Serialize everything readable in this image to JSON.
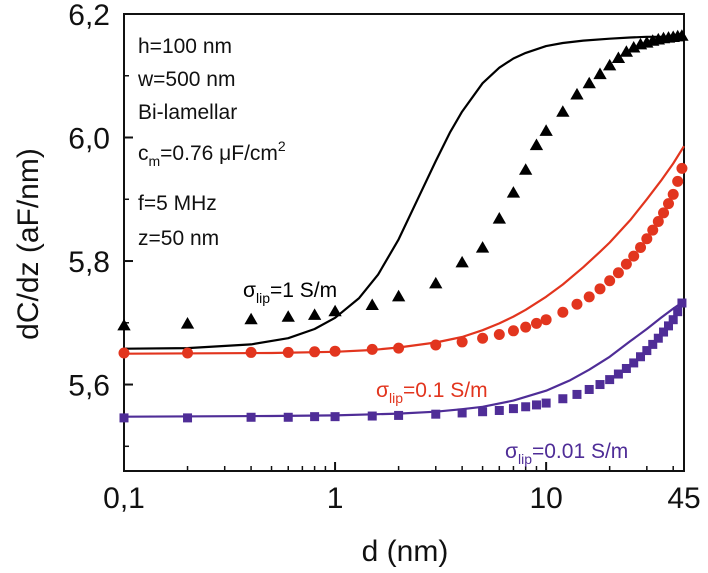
{
  "chart_data": {
    "type": "line",
    "xscale": "log",
    "xlim": [
      0.1,
      45
    ],
    "ylim": [
      5.46,
      6.2
    ],
    "xlabel": "d (nm)",
    "ylabel": "dC/dz (aF/nm)",
    "x_ticks": [
      {
        "value": 0.1,
        "label": "0,1"
      },
      {
        "value": 1,
        "label": "1"
      },
      {
        "value": 10,
        "label": "10"
      },
      {
        "value": 45,
        "label": "45"
      }
    ],
    "y_ticks": [
      {
        "value": 5.6,
        "label": "5,6"
      },
      {
        "value": 5.8,
        "label": "5,8"
      },
      {
        "value": 6.0,
        "label": "6,0"
      },
      {
        "value": 6.2,
        "label": "6,2"
      }
    ],
    "parameters": {
      "h": "h=100 nm",
      "w": "w=500 nm",
      "type": "Bi-lamellar",
      "cm_prefix": "c",
      "cm_sub": "m",
      "cm_value": "=0.76 μF/cm",
      "cm_sup": "2",
      "f": "f=5 MHz",
      "z": "z=50 nm"
    },
    "series": [
      {
        "name": "σlip=1 S/m",
        "label_prefix": "σ",
        "label_sub": "lip",
        "label_value": "=1 S/m",
        "color": "#000000",
        "marker": "triangle",
        "model_x": [
          0.1,
          0.2,
          0.4,
          0.6,
          0.8,
          1.0,
          1.3,
          1.6,
          2.0,
          2.5,
          3.0,
          3.5,
          4.0,
          5.0,
          6.0,
          7.0,
          8.0,
          10.0,
          12.0,
          15.0,
          20.0,
          25.0,
          30.0,
          35.0,
          45.0
        ],
        "model_y": [
          5.658,
          5.659,
          5.665,
          5.675,
          5.69,
          5.708,
          5.74,
          5.778,
          5.835,
          5.905,
          5.962,
          6.008,
          6.042,
          6.088,
          6.113,
          6.128,
          6.137,
          6.148,
          6.153,
          6.157,
          6.16,
          6.162,
          6.163,
          6.163,
          6.164
        ],
        "points_x": [
          0.1,
          0.2,
          0.4,
          0.6,
          0.8,
          1.0,
          1.5,
          2.0,
          3.0,
          4.0,
          5.0,
          6.0,
          7.0,
          8.0,
          9.0,
          10.0,
          12.0,
          14.0,
          16.0,
          18.0,
          20.0,
          22.0,
          24.0,
          26.0,
          28.0,
          30.0,
          32.0,
          34.0,
          36.0,
          38.0,
          40.0,
          42.0,
          44.0
        ],
        "points_y": [
          5.695,
          5.698,
          5.705,
          5.709,
          5.712,
          5.718,
          5.728,
          5.742,
          5.763,
          5.797,
          5.821,
          5.868,
          5.91,
          5.947,
          5.987,
          6.01,
          6.041,
          6.069,
          6.087,
          6.102,
          6.116,
          6.128,
          6.138,
          6.145,
          6.15,
          6.153,
          6.156,
          6.158,
          6.16,
          6.161,
          6.162,
          6.163,
          6.164
        ]
      },
      {
        "name": "σlip=0.1 S/m",
        "label_prefix": "σ",
        "label_sub": "lip",
        "label_value": "=0.1 S/m",
        "color": "#e2351e",
        "marker": "circle",
        "model_x": [
          0.1,
          0.5,
          1.0,
          1.5,
          2.0,
          3.0,
          4.0,
          5.0,
          6.0,
          7.0,
          8.0,
          10.0,
          12.0,
          15.0,
          18.0,
          20.0,
          25.0,
          30.0,
          35.0,
          40.0,
          45.0
        ],
        "model_y": [
          5.65,
          5.651,
          5.653,
          5.656,
          5.66,
          5.668,
          5.677,
          5.688,
          5.699,
          5.71,
          5.721,
          5.742,
          5.762,
          5.79,
          5.815,
          5.83,
          5.866,
          5.9,
          5.93,
          5.958,
          5.986
        ],
        "points_x": [
          0.1,
          0.2,
          0.4,
          0.6,
          0.8,
          1.0,
          1.5,
          2.0,
          3.0,
          4.0,
          5.0,
          6.0,
          7.0,
          8.0,
          9.0,
          10.0,
          12.0,
          14.0,
          16.0,
          18.0,
          20.0,
          22.0,
          24.0,
          26.0,
          28.0,
          30.0,
          32.0,
          34.0,
          36.0,
          38.0,
          40.0,
          42.0,
          44.0
        ],
        "points_y": [
          5.651,
          5.651,
          5.652,
          5.652,
          5.653,
          5.654,
          5.657,
          5.659,
          5.664,
          5.669,
          5.675,
          5.681,
          5.687,
          5.693,
          5.699,
          5.705,
          5.717,
          5.73,
          5.742,
          5.755,
          5.768,
          5.781,
          5.795,
          5.808,
          5.822,
          5.836,
          5.85,
          5.864,
          5.878,
          5.893,
          5.908,
          5.929,
          5.95
        ]
      },
      {
        "name": "σlip=0.01 S/m",
        "label_prefix": "σ",
        "label_sub": "lip",
        "label_value": "=0.01 S/m",
        "color": "#4f2d97",
        "marker": "square",
        "model_x": [
          0.1,
          0.5,
          1.0,
          2.0,
          3.0,
          4.0,
          5.0,
          7.0,
          10.0,
          13.0,
          16.0,
          20.0,
          25.0,
          30.0,
          35.0,
          40.0,
          45.0
        ],
        "model_y": [
          5.548,
          5.549,
          5.55,
          5.553,
          5.556,
          5.56,
          5.564,
          5.574,
          5.59,
          5.607,
          5.624,
          5.645,
          5.67,
          5.69,
          5.708,
          5.723,
          5.735
        ],
        "points_x": [
          0.1,
          0.2,
          0.4,
          0.6,
          0.8,
          1.0,
          1.5,
          2.0,
          3.0,
          4.0,
          5.0,
          6.0,
          7.0,
          8.0,
          9.0,
          10.0,
          12.0,
          14.0,
          16.0,
          18.0,
          20.0,
          22.0,
          24.0,
          26.0,
          28.0,
          30.0,
          32.0,
          34.0,
          36.0,
          38.0,
          40.0,
          42.0,
          44.0
        ],
        "points_y": [
          5.546,
          5.546,
          5.547,
          5.547,
          5.548,
          5.548,
          5.549,
          5.55,
          5.552,
          5.554,
          5.556,
          5.558,
          5.561,
          5.564,
          5.567,
          5.57,
          5.577,
          5.584,
          5.592,
          5.6,
          5.608,
          5.617,
          5.626,
          5.635,
          5.645,
          5.655,
          5.665,
          5.675,
          5.685,
          5.695,
          5.705,
          5.718,
          5.732
        ]
      }
    ]
  }
}
